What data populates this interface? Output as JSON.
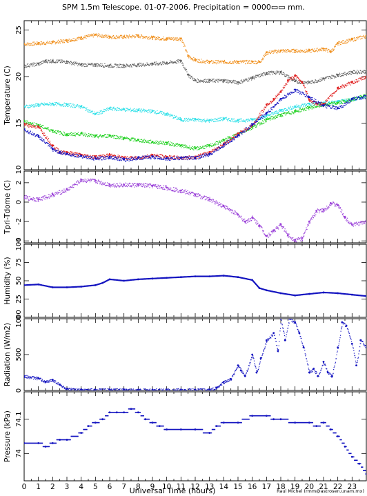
{
  "page": {
    "title": "SPM 1.5m Telescope. 01-07-2006. Precipitation = 0000▭▭ mm.",
    "xlabel": "Universal Time (hours)",
    "credit": "Raul Michel (rmm@astrosen.unam.mx)"
  },
  "colors": {
    "orange": "#f0901e",
    "gray": "#606060",
    "cyan": "#30e0e8",
    "green": "#20d020",
    "red": "#e02020",
    "blue": "#1414c0",
    "purple": "#9a40d8"
  },
  "chart_data": [
    {
      "type": "scatter",
      "ylabel": "Temperature (C)",
      "xlim": [
        0,
        24
      ],
      "ylim": [
        10,
        26
      ],
      "yticks": [
        10,
        15,
        20,
        25
      ],
      "series": [
        {
          "color": "orange",
          "x": [
            0,
            1,
            2,
            3,
            4,
            5,
            6,
            7,
            8,
            9,
            10,
            11,
            11.5,
            12,
            13,
            14,
            15,
            16,
            16.5,
            17,
            18,
            19,
            20,
            21,
            21.5,
            22,
            23,
            24
          ],
          "y": [
            23.5,
            23.6,
            23.7,
            23.9,
            24.2,
            24.5,
            24.3,
            24.3,
            24.4,
            24.2,
            24.1,
            24.1,
            22.2,
            21.8,
            21.6,
            21.6,
            21.6,
            21.6,
            21.6,
            22.6,
            22.8,
            22.8,
            22.8,
            23.0,
            22.7,
            23.6,
            24.0,
            24.4
          ]
        },
        {
          "color": "gray",
          "x": [
            0,
            1,
            1.5,
            2,
            3,
            4,
            5,
            6,
            7,
            8,
            9,
            10,
            11,
            11.5,
            12,
            13,
            14,
            15,
            16,
            17,
            18,
            19,
            20,
            21,
            22,
            23,
            24
          ],
          "y": [
            21.2,
            21.4,
            21.7,
            21.7,
            21.6,
            21.3,
            21.3,
            21.2,
            21.2,
            21.3,
            21.4,
            21.5,
            21.7,
            20.2,
            19.6,
            19.6,
            19.6,
            19.4,
            19.9,
            20.4,
            20.5,
            19.5,
            19.4,
            19.8,
            20.2,
            20.5,
            20.6
          ]
        },
        {
          "color": "cyan",
          "x": [
            0,
            1,
            2,
            3,
            4,
            5,
            6,
            7,
            8,
            9,
            10,
            11,
            12,
            13,
            14,
            15,
            16,
            17,
            18,
            19,
            20,
            21,
            22,
            23,
            24
          ],
          "y": [
            16.8,
            17.0,
            17.1,
            17.0,
            16.8,
            16.0,
            16.6,
            16.5,
            16.4,
            16.3,
            16.0,
            15.4,
            15.4,
            15.3,
            15.5,
            15.3,
            15.4,
            15.8,
            16.4,
            16.8,
            17.1,
            17.2,
            17.3,
            17.6,
            17.9
          ]
        },
        {
          "color": "green",
          "x": [
            0,
            1,
            2,
            3,
            4,
            5,
            6,
            7,
            8,
            9,
            10,
            11,
            12,
            13,
            14,
            15,
            16,
            17,
            18,
            19,
            20,
            21,
            22,
            23,
            24
          ],
          "y": [
            15.2,
            14.8,
            14.2,
            13.8,
            13.9,
            13.6,
            13.7,
            13.4,
            13.2,
            13.0,
            12.9,
            12.6,
            12.3,
            12.6,
            13.2,
            13.9,
            14.6,
            15.4,
            15.9,
            16.3,
            16.7,
            17.0,
            17.2,
            17.6,
            18.0
          ]
        },
        {
          "color": "red",
          "x": [
            0,
            1,
            2,
            2.5,
            3,
            4,
            5,
            6,
            7,
            8,
            9,
            10,
            11,
            12,
            13,
            14,
            15,
            16,
            17,
            17.5,
            18,
            18.5,
            19,
            19.5,
            20,
            20.5,
            21,
            22,
            23,
            24
          ],
          "y": [
            14.9,
            14.6,
            12.6,
            11.9,
            11.9,
            11.6,
            11.4,
            11.6,
            11.3,
            11.3,
            11.6,
            11.4,
            11.3,
            11.4,
            11.9,
            12.8,
            13.9,
            14.8,
            17.0,
            17.6,
            18.4,
            19.6,
            20.1,
            19.4,
            17.5,
            17.1,
            17.1,
            18.8,
            19.4,
            20.0
          ]
        },
        {
          "color": "blue",
          "x": [
            0,
            1,
            2,
            2.5,
            3,
            4,
            5,
            6,
            7,
            8,
            9,
            10,
            11,
            12,
            13,
            14,
            15,
            16,
            17,
            18,
            19,
            20,
            21,
            22,
            23,
            24
          ],
          "y": [
            14.3,
            13.6,
            12.2,
            11.9,
            11.7,
            11.5,
            11.2,
            11.4,
            11.1,
            11.3,
            11.4,
            11.2,
            11.3,
            11.3,
            11.7,
            12.7,
            13.7,
            14.9,
            16.1,
            17.6,
            18.6,
            17.8,
            16.9,
            16.6,
            17.6,
            17.9
          ]
        }
      ]
    },
    {
      "type": "scatter",
      "ylabel": "Tpri-Tdome (C)",
      "xlim": [
        0,
        24
      ],
      "ylim": [
        -4.2,
        3.2
      ],
      "yticks": [
        -4,
        -2,
        0,
        2
      ],
      "series": [
        {
          "color": "purple",
          "x": [
            0,
            1,
            2,
            3,
            4,
            5,
            6,
            7,
            8,
            9,
            10,
            11,
            12,
            13,
            14,
            15,
            15.5,
            16,
            16.5,
            17,
            17.5,
            18,
            18.5,
            19,
            19.5,
            20,
            20.5,
            21,
            21.5,
            22,
            22.5,
            23,
            24
          ],
          "y": [
            0.5,
            0.3,
            0.8,
            1.3,
            2.3,
            2.2,
            1.8,
            1.8,
            1.8,
            1.7,
            1.5,
            1.2,
            0.8,
            0.3,
            -0.4,
            -1.3,
            -2.0,
            -1.6,
            -2.4,
            -3.5,
            -2.9,
            -2.3,
            -3.4,
            -3.9,
            -3.7,
            -2.0,
            -0.9,
            -0.8,
            -0.1,
            -0.3,
            -1.6,
            -2.3,
            -2.0
          ]
        }
      ]
    },
    {
      "type": "line",
      "ylabel": "Humidity (%)",
      "xlim": [
        0,
        24
      ],
      "ylim": [
        0,
        100
      ],
      "yticks": [
        0,
        25,
        50,
        75,
        100
      ],
      "series": [
        {
          "color": "blue",
          "x": [
            0,
            1,
            2,
            3,
            4,
            5,
            5.5,
            6,
            7,
            8,
            9,
            10,
            11,
            12,
            13,
            14,
            15,
            16,
            16.5,
            17,
            18,
            19,
            20,
            21,
            22,
            23,
            24
          ],
          "y": [
            44,
            45,
            41,
            41,
            42,
            44,
            47,
            52,
            50,
            52,
            53,
            54,
            55,
            56,
            56,
            57,
            55,
            51,
            40,
            37,
            33,
            30,
            32,
            34,
            33,
            31,
            29
          ]
        }
      ]
    },
    {
      "type": "scatter",
      "ylabel": "Radiation (W/m2)",
      "xlim": [
        0,
        24
      ],
      "ylim": [
        0,
        1000
      ],
      "yticks": [
        0,
        500,
        1000
      ],
      "series": [
        {
          "color": "blue",
          "x": [
            0,
            1,
            1.5,
            2,
            2.5,
            3,
            4,
            5,
            6,
            7,
            8,
            9,
            10,
            11,
            12,
            13,
            13.5,
            14,
            14.5,
            15,
            15.2,
            15.5,
            16,
            16.3,
            16.6,
            17,
            17.5,
            17.8,
            18,
            18.3,
            18.6,
            19,
            19.3,
            19.6,
            20,
            20.3,
            20.6,
            21,
            21.3,
            21.6,
            22,
            22.3,
            22.6,
            23,
            23.3,
            23.6,
            24
          ],
          "y": [
            200,
            170,
            120,
            150,
            80,
            20,
            10,
            10,
            10,
            10,
            10,
            10,
            10,
            10,
            10,
            10,
            40,
            120,
            160,
            350,
            280,
            200,
            500,
            250,
            450,
            700,
            800,
            550,
            1000,
            700,
            1000,
            950,
            800,
            600,
            250,
            300,
            200,
            400,
            250,
            200,
            600,
            950,
            900,
            650,
            350,
            700,
            600
          ]
        }
      ]
    },
    {
      "type": "scatter",
      "ylabel": "Pressure (kPa)",
      "xlim": [
        0,
        24
      ],
      "ylim": [
        73.92,
        74.18
      ],
      "yticks": [
        74,
        74.1
      ],
      "series": [
        {
          "color": "blue",
          "x": [
            0,
            1,
            1.5,
            2,
            2.5,
            3,
            4,
            4.5,
            5,
            5.5,
            6,
            6.5,
            7,
            7.5,
            8,
            8.5,
            9,
            9.5,
            10,
            11,
            12,
            13,
            13.5,
            14,
            15,
            16,
            17,
            17.5,
            18,
            19,
            20,
            20.5,
            21,
            21.5,
            22,
            22.5,
            23,
            23.5,
            24
          ],
          "y": [
            74.03,
            74.03,
            74.02,
            74.03,
            74.04,
            74.04,
            74.06,
            74.08,
            74.09,
            74.1,
            74.12,
            74.12,
            74.12,
            74.13,
            74.12,
            74.1,
            74.09,
            74.08,
            74.07,
            74.07,
            74.07,
            74.06,
            74.08,
            74.09,
            74.09,
            74.11,
            74.11,
            74.1,
            74.1,
            74.09,
            74.09,
            74.08,
            74.09,
            74.07,
            74.05,
            74.02,
            73.99,
            73.97,
            73.94
          ]
        }
      ]
    }
  ],
  "x_ticks": [
    "0",
    "1",
    "2",
    "3",
    "4",
    "5",
    "6",
    "7",
    "8",
    "9",
    "10",
    "11",
    "12",
    "13",
    "14",
    "15",
    "16",
    "17",
    "18",
    "19",
    "20",
    "21",
    "22",
    "23"
  ]
}
